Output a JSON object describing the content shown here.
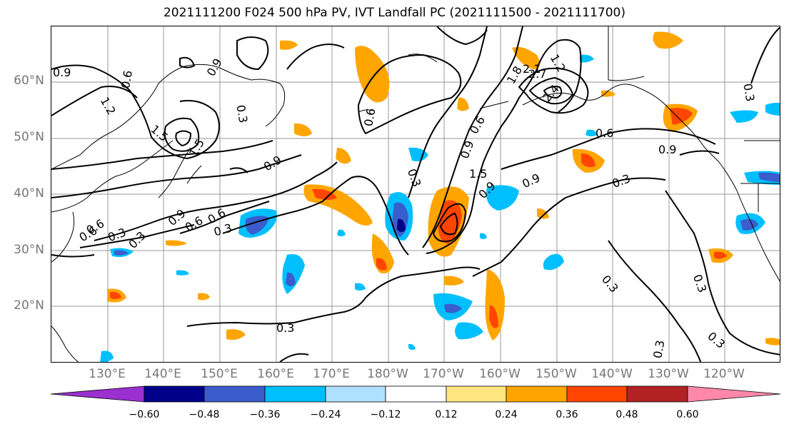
{
  "title": "2021111200 F024 500 hPa PV, IVT Landfall PC (2021111500 - 2021111700)",
  "lat_labels": [
    "60°N",
    "50°N",
    "40°N",
    "30°N",
    "20°N"
  ],
  "lon_labels": [
    "130°E",
    "140°E",
    "150°E",
    "160°E",
    "170°E",
    "180°W",
    "170°W",
    "160°W",
    "150°W",
    "140°W",
    "130°W",
    "120°W"
  ],
  "colorbar": {
    "tick_labels": [
      "−0.60",
      "−0.48",
      "−0.36",
      "−0.24",
      "−0.12",
      "0.12",
      "0.24",
      "0.36",
      "0.48",
      "0.60"
    ],
    "colors": [
      "#9b30d0",
      "#00008b",
      "#3a5ccc",
      "#00bfff",
      "#b0e0ff",
      "#ffffff",
      "#ffe680",
      "#ffa500",
      "#ff4500",
      "#b22222",
      "#ff88aa"
    ]
  },
  "contour_labels": [
    "0.9",
    "0.6",
    "1.2",
    "0.3",
    "1.5",
    "0.9",
    "0.9",
    "0.3",
    "0.6",
    "0.3",
    "0.6",
    "0.9",
    "0.6",
    "0.3",
    "0.3",
    "0.6",
    "1.5",
    "0.9",
    "0.3",
    "0.6",
    "0.9",
    "2.1",
    "1.8",
    "0.3",
    "0.3",
    "0.3",
    "0.3",
    "0.3",
    "0.3",
    "0.6",
    "0.9",
    "2.4",
    "2.7",
    "1.5",
    "1.2",
    "0.6",
    "0.9"
  ],
  "colors": {
    "grid": "#999999",
    "land": "#000000",
    "contour": "#000000",
    "positive_strong": "#ff4500",
    "positive_mid": "#ffa500",
    "positive_weak": "#ffe680",
    "negative_weak": "#b0e0ff",
    "negative_mid": "#00bfff",
    "negative_strong": "#3a5ccc",
    "negative_max": "#00008b"
  }
}
